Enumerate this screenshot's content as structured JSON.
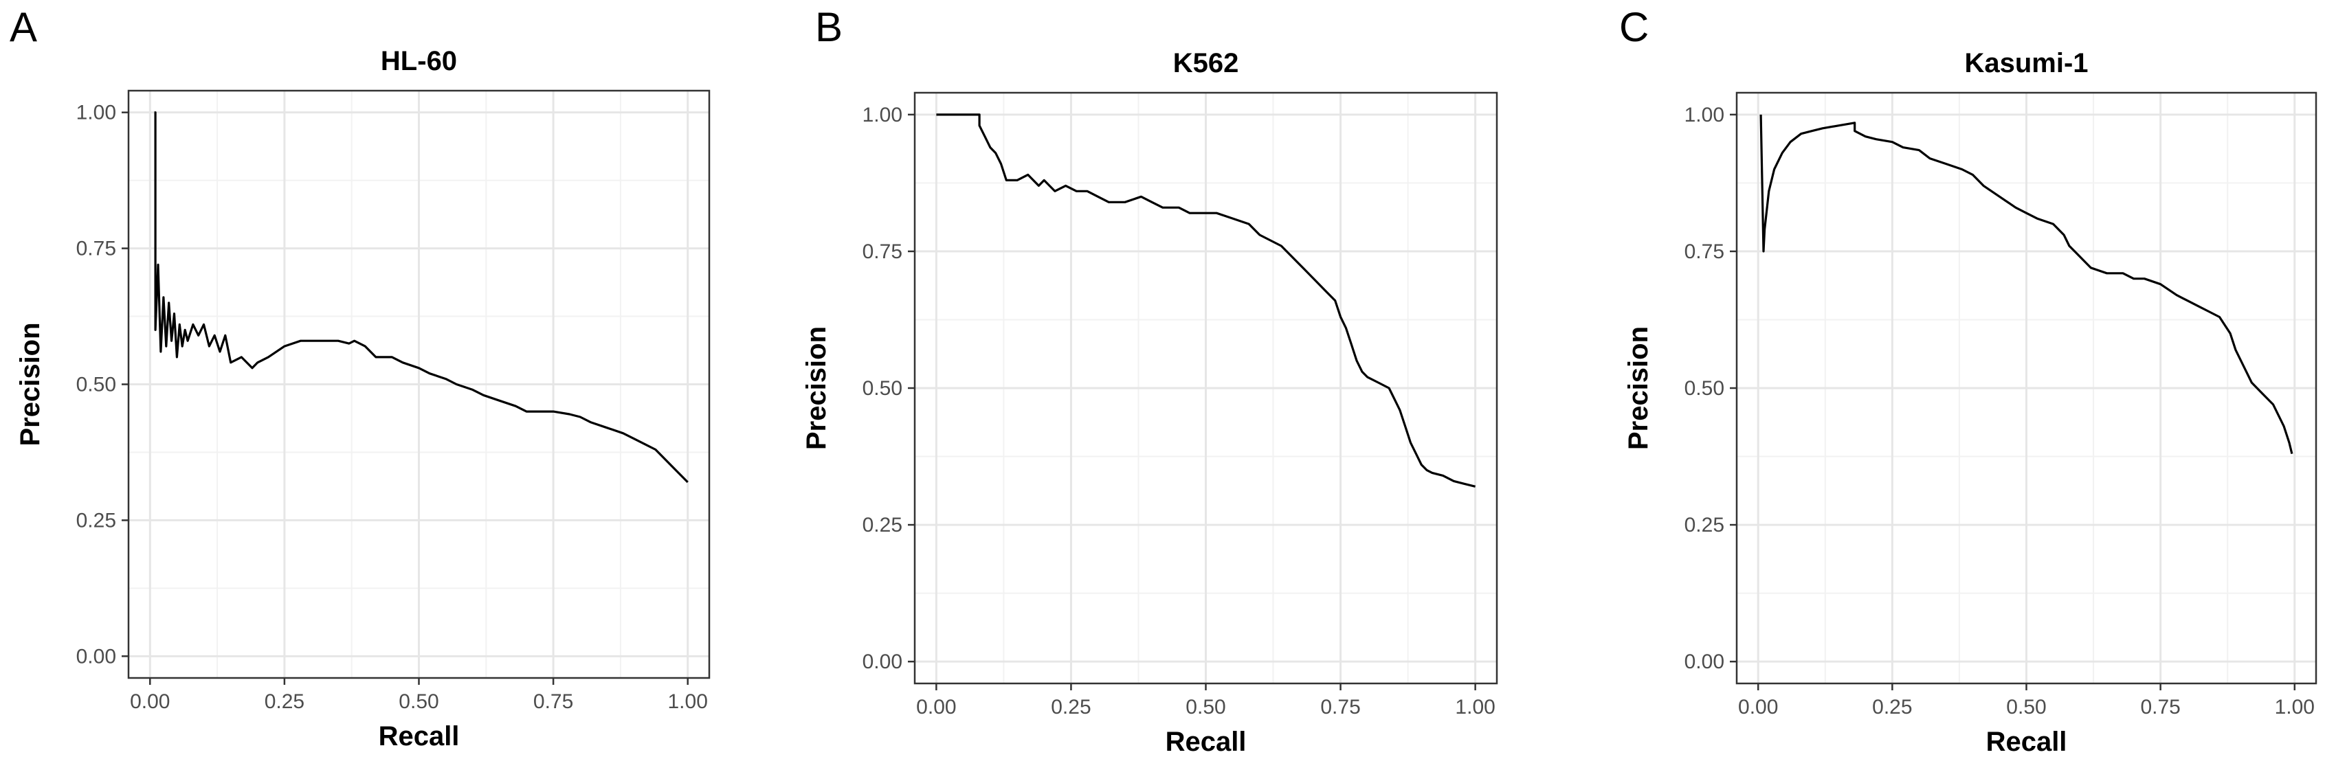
{
  "panel_letters": [
    "A",
    "B",
    "C"
  ],
  "chart_data": [
    {
      "type": "line",
      "title": "HL-60",
      "xlabel": "Recall",
      "ylabel": "Precision",
      "xlim": [
        -0.04,
        1.04
      ],
      "ylim": [
        -0.04,
        1.04
      ],
      "xticks": [
        "0.00",
        "0.25",
        "0.50",
        "0.75",
        "1.00"
      ],
      "yticks": [
        "0.00",
        "0.25",
        "0.50",
        "0.75",
        "1.00"
      ],
      "grid": true,
      "legend": "none",
      "series": [
        {
          "x": [
            0.008,
            0.01,
            0.01,
            0.015,
            0.02,
            0.025,
            0.03,
            0.035,
            0.04,
            0.045,
            0.05,
            0.055,
            0.06,
            0.065,
            0.07,
            0.08,
            0.09,
            0.1,
            0.11,
            0.12,
            0.13,
            0.14,
            0.15,
            0.17,
            0.19,
            0.2,
            0.22,
            0.25,
            0.28,
            0.3,
            0.33,
            0.35,
            0.37,
            0.38,
            0.4,
            0.42,
            0.45,
            0.47,
            0.5,
            0.52,
            0.55,
            0.57,
            0.6,
            0.62,
            0.65,
            0.68,
            0.7,
            0.72,
            0.75,
            0.78,
            0.8,
            0.82,
            0.85,
            0.88,
            0.9,
            0.92,
            0.94,
            0.95,
            0.97,
            0.98,
            0.99,
            1.0
          ],
          "y": [
            1.0,
            1.0,
            0.6,
            0.72,
            0.56,
            0.66,
            0.57,
            0.65,
            0.58,
            0.63,
            0.55,
            0.61,
            0.57,
            0.6,
            0.58,
            0.61,
            0.59,
            0.61,
            0.57,
            0.59,
            0.56,
            0.59,
            0.54,
            0.55,
            0.53,
            0.54,
            0.55,
            0.57,
            0.58,
            0.58,
            0.58,
            0.58,
            0.575,
            0.58,
            0.57,
            0.55,
            0.55,
            0.54,
            0.53,
            0.52,
            0.51,
            0.5,
            0.49,
            0.48,
            0.47,
            0.46,
            0.45,
            0.45,
            0.45,
            0.445,
            0.44,
            0.43,
            0.42,
            0.41,
            0.4,
            0.39,
            0.38,
            0.37,
            0.35,
            0.34,
            0.33,
            0.32
          ]
        }
      ]
    },
    {
      "type": "line",
      "title": "K562",
      "xlabel": "Recall",
      "ylabel": "Precision",
      "xlim": [
        -0.04,
        1.04
      ],
      "ylim": [
        -0.04,
        1.04
      ],
      "xticks": [
        "0.00",
        "0.25",
        "0.50",
        "0.75",
        "1.00"
      ],
      "yticks": [
        "0.00",
        "0.25",
        "0.50",
        "0.75",
        "1.00"
      ],
      "grid": true,
      "legend": "none",
      "series": [
        {
          "x": [
            0.0,
            0.08,
            0.08,
            0.09,
            0.1,
            0.11,
            0.12,
            0.13,
            0.15,
            0.17,
            0.19,
            0.2,
            0.22,
            0.24,
            0.26,
            0.28,
            0.3,
            0.32,
            0.35,
            0.38,
            0.4,
            0.42,
            0.45,
            0.47,
            0.5,
            0.52,
            0.55,
            0.58,
            0.6,
            0.62,
            0.64,
            0.66,
            0.68,
            0.7,
            0.72,
            0.74,
            0.75,
            0.76,
            0.77,
            0.78,
            0.79,
            0.8,
            0.82,
            0.84,
            0.86,
            0.87,
            0.88,
            0.89,
            0.9,
            0.91,
            0.92,
            0.94,
            0.96,
            0.98,
            1.0
          ],
          "y": [
            1.0,
            1.0,
            0.98,
            0.96,
            0.94,
            0.93,
            0.91,
            0.88,
            0.88,
            0.89,
            0.87,
            0.88,
            0.86,
            0.87,
            0.86,
            0.86,
            0.85,
            0.84,
            0.84,
            0.85,
            0.84,
            0.83,
            0.83,
            0.82,
            0.82,
            0.82,
            0.81,
            0.8,
            0.78,
            0.77,
            0.76,
            0.74,
            0.72,
            0.7,
            0.68,
            0.66,
            0.63,
            0.61,
            0.58,
            0.55,
            0.53,
            0.52,
            0.51,
            0.5,
            0.46,
            0.43,
            0.4,
            0.38,
            0.36,
            0.35,
            0.345,
            0.34,
            0.33,
            0.325,
            0.32
          ]
        }
      ]
    },
    {
      "type": "line",
      "title": "Kasumi-1",
      "xlabel": "Recall",
      "ylabel": "Precision",
      "xlim": [
        -0.04,
        1.04
      ],
      "ylim": [
        -0.04,
        1.04
      ],
      "xticks": [
        "0.00",
        "0.25",
        "0.50",
        "0.75",
        "1.00"
      ],
      "yticks": [
        "0.00",
        "0.25",
        "0.50",
        "0.75",
        "1.00"
      ],
      "grid": true,
      "legend": "none",
      "series": [
        {
          "x": [
            0.005,
            0.005,
            0.01,
            0.012,
            0.02,
            0.03,
            0.045,
            0.06,
            0.08,
            0.1,
            0.12,
            0.15,
            0.18,
            0.18,
            0.2,
            0.22,
            0.25,
            0.27,
            0.3,
            0.32,
            0.35,
            0.38,
            0.4,
            0.42,
            0.45,
            0.48,
            0.5,
            0.52,
            0.55,
            0.57,
            0.58,
            0.6,
            0.62,
            0.65,
            0.68,
            0.7,
            0.72,
            0.75,
            0.78,
            0.8,
            0.82,
            0.84,
            0.86,
            0.88,
            0.89,
            0.9,
            0.91,
            0.92,
            0.94,
            0.96,
            0.97,
            0.98,
            0.99,
            0.995
          ],
          "y": [
            1.0,
            1.0,
            0.75,
            0.79,
            0.86,
            0.9,
            0.93,
            0.95,
            0.965,
            0.97,
            0.975,
            0.98,
            0.985,
            0.97,
            0.96,
            0.955,
            0.95,
            0.94,
            0.935,
            0.92,
            0.91,
            0.9,
            0.89,
            0.87,
            0.85,
            0.83,
            0.82,
            0.81,
            0.8,
            0.78,
            0.76,
            0.74,
            0.72,
            0.71,
            0.71,
            0.7,
            0.7,
            0.69,
            0.67,
            0.66,
            0.65,
            0.64,
            0.63,
            0.6,
            0.57,
            0.55,
            0.53,
            0.51,
            0.49,
            0.47,
            0.45,
            0.43,
            0.4,
            0.38
          ]
        }
      ]
    }
  ]
}
